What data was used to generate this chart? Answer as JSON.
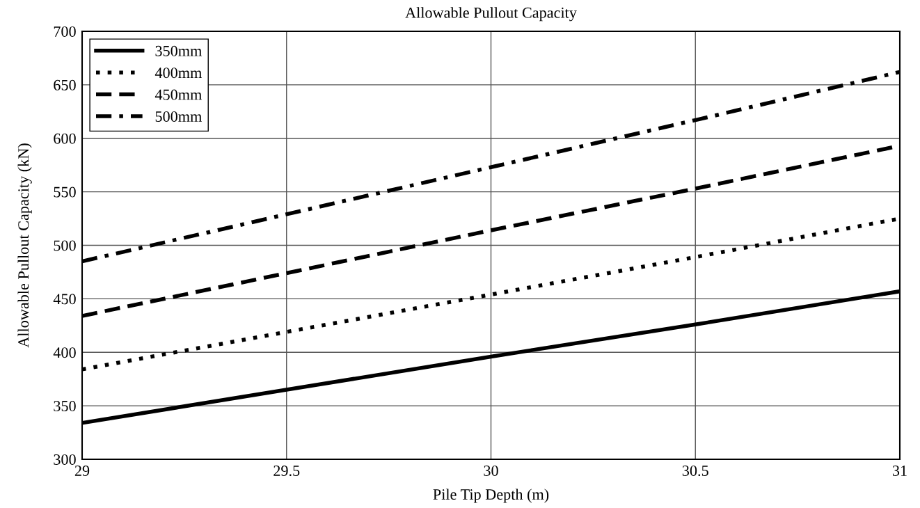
{
  "chart_data": {
    "type": "line",
    "title": "Allowable Pullout Capacity",
    "xlabel": "Pile Tip Depth (m)",
    "ylabel": "Allowable Pullout Capacity (kN)",
    "x": [
      29,
      29.5,
      30,
      30.5,
      31
    ],
    "series": [
      {
        "name": "350mm",
        "color": "#000000",
        "line_style": "solid",
        "values": [
          334,
          365,
          396,
          426,
          457
        ]
      },
      {
        "name": "400mm",
        "color": "#000000",
        "line_style": "dotted",
        "values": [
          384,
          419,
          454,
          489,
          525
        ]
      },
      {
        "name": "450mm",
        "color": "#000000",
        "line_style": "dashed",
        "values": [
          434,
          474,
          514,
          553,
          593
        ]
      },
      {
        "name": "500mm",
        "color": "#000000",
        "line_style": "dashdot",
        "values": [
          485,
          529,
          573,
          617,
          662
        ]
      }
    ],
    "xlim": [
      29,
      31
    ],
    "xticks": [
      29,
      29.5,
      30,
      30.5,
      31
    ],
    "ylim": [
      300,
      700
    ],
    "yticks": [
      300,
      350,
      400,
      450,
      500,
      550,
      600,
      650,
      700
    ],
    "grid": true,
    "legend": "top left",
    "marker": "none"
  }
}
